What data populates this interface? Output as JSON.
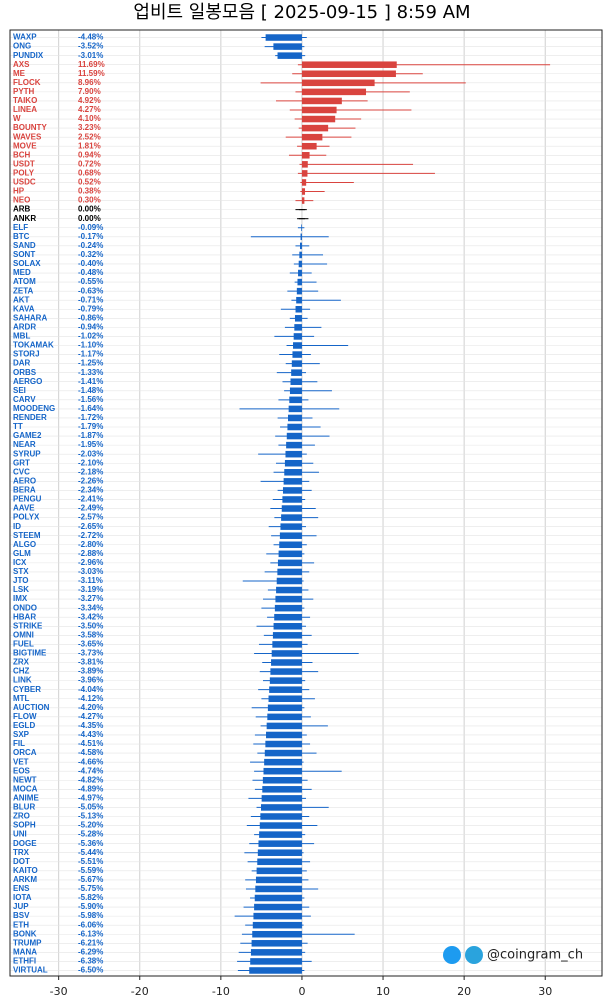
{
  "chart_data": {
    "type": "range-bar",
    "title": "업비트 일봉모음 [ 2025-09-15 ]  8:59 AM",
    "watermark": "@coingram_ch",
    "categories": [
      "WAXP",
      "ONG",
      "PUNDIX",
      "AXS",
      "ME",
      "FLOCK",
      "PYTH",
      "TAIKO",
      "LINEA",
      "W",
      "BOUNTY",
      "WAVES",
      "MOVE",
      "BCH",
      "USDT",
      "POLY",
      "USDC",
      "HP",
      "NEO",
      "ARB",
      "ANKR",
      "ELF",
      "BTC",
      "SAND",
      "SONT",
      "SOLAX",
      "MED",
      "ATOM",
      "ZETA",
      "AKT",
      "KAVA",
      "SAHARA",
      "ARDR",
      "MBL",
      "TOKAMAK",
      "STORJ",
      "DAR",
      "ORBS",
      "AERGO",
      "SEI",
      "CARV",
      "MOODENG",
      "RENDER",
      "TT",
      "GAME2",
      "NEAR",
      "SYRUP",
      "GRT",
      "CVC",
      "AERO",
      "BERA",
      "PENGU",
      "AAVE",
      "POLYX",
      "ID",
      "STEEM",
      "ALGO",
      "GLM",
      "ICX",
      "STX",
      "JTO",
      "LSK",
      "IMX",
      "ONDO",
      "HBAR",
      "STRIKE",
      "OMNI",
      "FUEL",
      "BIGTIME",
      "ZRX",
      "CHZ",
      "LINK",
      "CYBER",
      "MTL",
      "AUCTION",
      "FLOW",
      "EGLD",
      "SXP",
      "FIL",
      "ORCA",
      "VET",
      "EOS",
      "NEWT",
      "MOCA",
      "ANIME",
      "BLUR",
      "ZRO",
      "SOPH",
      "UNI",
      "DOGE",
      "TRX",
      "DOT",
      "KAITO",
      "ARKM",
      "ENS",
      "IOTA",
      "JUP",
      "BSV",
      "ETH",
      "BONK",
      "TRUMP",
      "MANA",
      "ETHFI",
      "VIRTUAL"
    ],
    "values": [
      -4.48,
      -3.52,
      -3.01,
      11.69,
      11.59,
      8.96,
      7.9,
      4.92,
      4.27,
      4.1,
      3.23,
      2.52,
      1.81,
      0.94,
      0.72,
      0.68,
      0.52,
      0.38,
      0.3,
      0.0,
      0.0,
      -0.09,
      -0.17,
      -0.24,
      -0.32,
      -0.4,
      -0.48,
      -0.55,
      -0.63,
      -0.71,
      -0.79,
      -0.86,
      -0.94,
      -1.02,
      -1.1,
      -1.17,
      -1.25,
      -1.33,
      -1.41,
      -1.48,
      -1.56,
      -1.64,
      -1.72,
      -1.79,
      -1.87,
      -1.95,
      -2.03,
      -2.1,
      -2.18,
      -2.26,
      -2.34,
      -2.41,
      -2.49,
      -2.57,
      -2.65,
      -2.72,
      -2.8,
      -2.88,
      -2.96,
      -3.03,
      -3.11,
      -3.19,
      -3.27,
      -3.34,
      -3.42,
      -3.5,
      -3.58,
      -3.65,
      -3.73,
      -3.81,
      -3.89,
      -3.96,
      -4.04,
      -4.12,
      -4.2,
      -4.27,
      -4.35,
      -4.43,
      -4.51,
      -4.58,
      -4.66,
      -4.74,
      -4.82,
      -4.89,
      -4.97,
      -5.05,
      -5.13,
      -5.2,
      -5.28,
      -5.36,
      -5.44,
      -5.51,
      -5.59,
      -5.67,
      -5.75,
      -5.82,
      -5.9,
      -5.98,
      -6.06,
      -6.13,
      -6.21,
      -6.29,
      -6.38,
      -6.5
    ],
    "value_labels": [
      "-4.48%",
      "-3.52%",
      "-3.01%",
      "11.69%",
      "11.59%",
      "8.96%",
      "7.90%",
      "4.92%",
      "4.27%",
      "4.10%",
      "3.23%",
      "2.52%",
      "1.81%",
      "0.94%",
      "0.72%",
      "0.68%",
      "0.52%",
      "0.38%",
      "0.30%",
      "0.00%",
      "0.00%",
      "-0.09%",
      "-0.17%",
      "-0.24%",
      "-0.32%",
      "-0.40%",
      "-0.48%",
      "-0.55%",
      "-0.63%",
      "-0.71%",
      "-0.79%",
      "-0.86%",
      "-0.94%",
      "-1.02%",
      "-1.10%",
      "-1.17%",
      "-1.25%",
      "-1.33%",
      "-1.41%",
      "-1.48%",
      "-1.56%",
      "-1.64%",
      "-1.72%",
      "-1.79%",
      "-1.87%",
      "-1.95%",
      "-2.03%",
      "-2.10%",
      "-2.18%",
      "-2.26%",
      "-2.34%",
      "-2.41%",
      "-2.49%",
      "-2.57%",
      "-2.65%",
      "-2.72%",
      "-2.80%",
      "-2.88%",
      "-2.96%",
      "-3.03%",
      "-3.11%",
      "-3.19%",
      "-3.27%",
      "-3.34%",
      "-3.42%",
      "-3.50%",
      "-3.58%",
      "-3.65%",
      "-3.73%",
      "-3.81%",
      "-3.89%",
      "-3.96%",
      "-4.04%",
      "-4.12%",
      "-4.20%",
      "-4.27%",
      "-4.35%",
      "-4.43%",
      "-4.51%",
      "-4.58%",
      "-4.66%",
      "-4.74%",
      "-4.82%",
      "-4.89%",
      "-4.97%",
      "-5.05%",
      "-5.13%",
      "-5.20%",
      "-5.28%",
      "-5.36%",
      "-5.44%",
      "-5.51%",
      "-5.59%",
      "-5.67%",
      "-5.75%",
      "-5.82%",
      "-5.90%",
      "-5.98%",
      "-6.06%",
      "-6.13%",
      "-6.21%",
      "-6.29%",
      "-6.38%",
      "-6.50%"
    ],
    "low": [
      -5.0,
      -4.6,
      -3.3,
      -0.5,
      -1.2,
      -5.1,
      -0.8,
      -3.2,
      -1.5,
      -0.9,
      -0.4,
      -2.0,
      -0.6,
      -1.6,
      -0.3,
      -0.5,
      -0.2,
      -0.2,
      -0.8,
      -0.8,
      -0.6,
      -0.5,
      -6.3,
      -0.8,
      -1.2,
      -1.0,
      -1.5,
      -0.9,
      -1.8,
      -1.3,
      -2.6,
      -1.5,
      -2.1,
      -3.4,
      -1.9,
      -2.8,
      -2.0,
      -3.1,
      -2.4,
      -2.2,
      -2.9,
      -7.7,
      -3.0,
      -2.7,
      -3.3,
      -2.9,
      -5.4,
      -3.2,
      -3.5,
      -5.1,
      -3.0,
      -3.6,
      -3.9,
      -3.4,
      -4.1,
      -3.8,
      -3.5,
      -4.4,
      -3.9,
      -4.6,
      -7.3,
      -4.2,
      -4.8,
      -5.0,
      -4.3,
      -5.6,
      -4.7,
      -5.3,
      -5.9,
      -4.9,
      -5.2,
      -4.8,
      -5.4,
      -5.0,
      -6.2,
      -5.7,
      -5.1,
      -5.8,
      -6.0,
      -5.5,
      -6.4,
      -5.9,
      -6.1,
      -5.8,
      -6.6,
      -5.6,
      -6.3,
      -6.8,
      -5.9,
      -6.5,
      -7.1,
      -6.7,
      -6.2,
      -7.0,
      -6.9,
      -6.4,
      -7.2,
      -8.3,
      -7.0,
      -7.4,
      -7.6,
      -7.8,
      -8.0,
      -7.9
    ],
    "high": [
      0.6,
      0.3,
      0.4,
      30.6,
      14.9,
      20.2,
      13.3,
      8.1,
      13.5,
      7.3,
      6.6,
      6.1,
      3.4,
      3.0,
      13.7,
      16.4,
      6.4,
      2.8,
      1.4,
      0.6,
      0.8,
      0.3,
      3.3,
      0.9,
      2.6,
      3.1,
      1.2,
      1.8,
      2.0,
      4.8,
      1.0,
      0.7,
      2.4,
      1.5,
      5.7,
      1.1,
      2.2,
      0.5,
      1.9,
      3.7,
      0.8,
      4.6,
      1.3,
      2.3,
      3.4,
      1.6,
      0.6,
      1.4,
      2.1,
      0.9,
      1.2,
      0.4,
      1.7,
      2.0,
      0.5,
      1.8,
      0.6,
      0.3,
      1.5,
      0.9,
      0.2,
      0.8,
      1.4,
      0.3,
      1.0,
      0.5,
      1.2,
      0.7,
      7.0,
      1.3,
      2.0,
      0.4,
      0.9,
      1.6,
      0.3,
      1.1,
      3.2,
      0.6,
      1.0,
      1.8,
      0.2,
      4.9,
      0.7,
      1.2,
      0.5,
      3.3,
      0.9,
      1.9,
      0.4,
      1.5,
      0.2,
      1.0,
      0.6,
      0.8,
      2.0,
      0.3,
      0.9,
      1.1,
      0.2,
      6.5,
      0.7,
      0.4,
      1.2,
      0.3
    ],
    "up_color": "#d9443f",
    "down_color": "#1565c8",
    "flat_color": "#000000",
    "xlim": [
      -36,
      37
    ],
    "xticks": [
      -30,
      -20,
      -10,
      0,
      10,
      20,
      30
    ],
    "grid": true
  }
}
